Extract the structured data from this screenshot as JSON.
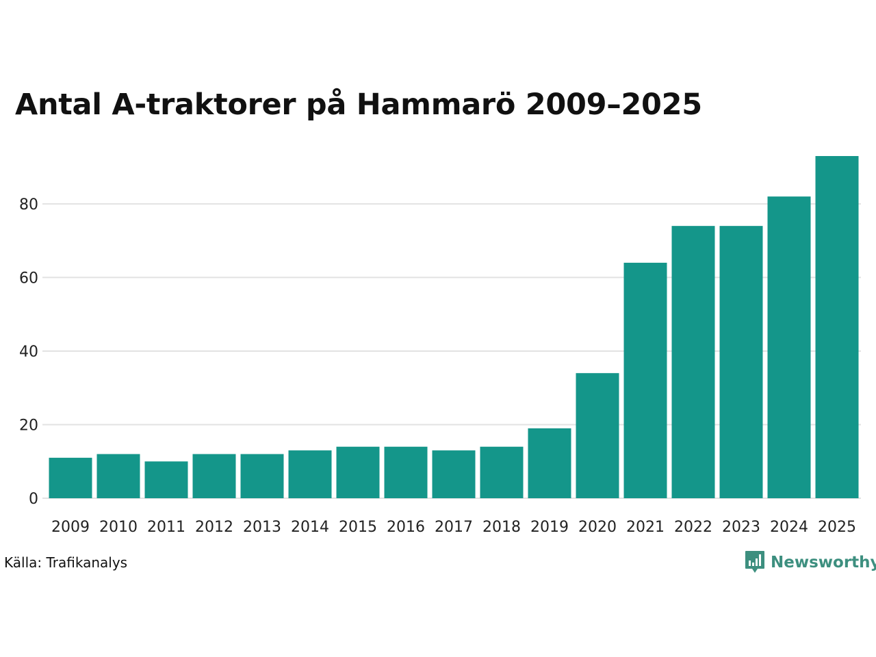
{
  "chart_data": {
    "type": "bar",
    "title": "Antal A-traktorer på Hammarö 2009–2025",
    "xlabel": "",
    "ylabel": "",
    "categories": [
      "2009",
      "2010",
      "2011",
      "2012",
      "2013",
      "2014",
      "2015",
      "2016",
      "2017",
      "2018",
      "2019",
      "2020",
      "2021",
      "2022",
      "2023",
      "2024",
      "2025"
    ],
    "values": [
      11,
      12,
      10,
      12,
      12,
      13,
      14,
      14,
      13,
      14,
      19,
      34,
      64,
      74,
      74,
      82,
      93
    ],
    "ylim": [
      0,
      93
    ],
    "yticks": [
      0,
      20,
      40,
      60,
      80
    ],
    "grid": true,
    "bar_color": "#14968a",
    "grid_color": "#e2e2e2"
  },
  "footer": {
    "source": "Källa: Trafikanalys",
    "brand": "Newsworthy",
    "brand_icon": "bar-chart-speech-bubble-icon",
    "brand_color": "#3d8f7f"
  }
}
